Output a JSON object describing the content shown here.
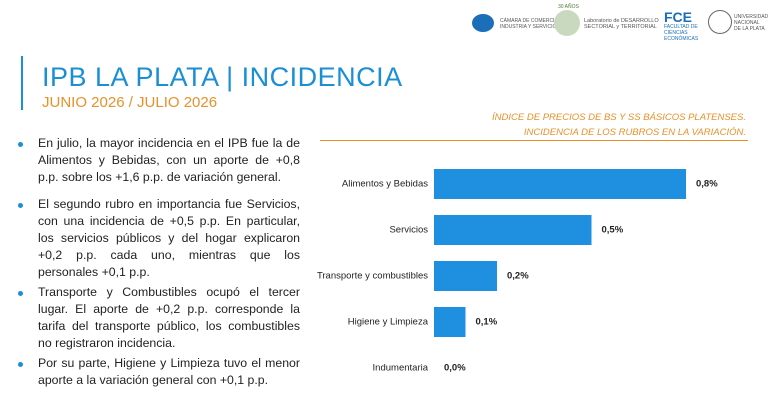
{
  "logos": {
    "camara": "CÁMARA DE COMERCIO\nINDUSTRIA Y SERVICIOS",
    "anios": "30 AÑOS",
    "laboratorio": "Laboratorio de DESARROLLO\nSECTORIAL y TERRITORIAL",
    "fce": "FCE",
    "fce_name": "FACULTAD DE\nCIENCIAS\nECONÓMICAS",
    "unlp": "UNIVERSIDAD\nNACIONAL\nDE LA PLATA"
  },
  "header": {
    "title": "IPB LA PLATA | INCIDENCIA",
    "subtitle": "JUNIO 2026 / JULIO 2026"
  },
  "bullets": [
    "En julio, la mayor incidencia en el IPB fue la de Alimentos y Bebidas, con un aporte de +0,8 p.p. sobre los +1,6 p.p. de variación general.",
    "El segundo rubro en importancia fue Servicios, con una incidencia de +0,5 p.p. En particular, los servicios públicos y del hogar explicaron +0,2 p.p. cada uno, mientras que los personales +0,1 p.p.",
    "Transporte y Combustibles ocupó el tercer lugar. El aporte de +0,2 p.p. corresponde la tarifa del transporte público, los combustibles no registraron incidencia.",
    "Por su parte, Higiene y Limpieza tuvo el menor aporte a la variación general con +0,1 p.p."
  ],
  "chart_data": {
    "type": "bar",
    "orientation": "horizontal",
    "title": "ÍNDICE DE PRECIOS DE BS Y SS BÁSICOS PLATENSES. INCIDENCIA DE LOS RUBROS EN LA VARIACIÓN.",
    "categories": [
      "Alimentos y Bebidas",
      "Servicios",
      "Transporte y combustibles",
      "Higiene y Limpieza",
      "Indumentaria"
    ],
    "values": [
      0.8,
      0.5,
      0.2,
      0.1,
      0.0
    ],
    "value_labels": [
      "0,8%",
      "0,5%",
      "0,2%",
      "0,1%",
      "0,0%"
    ],
    "color": "#1f8fe0"
  }
}
